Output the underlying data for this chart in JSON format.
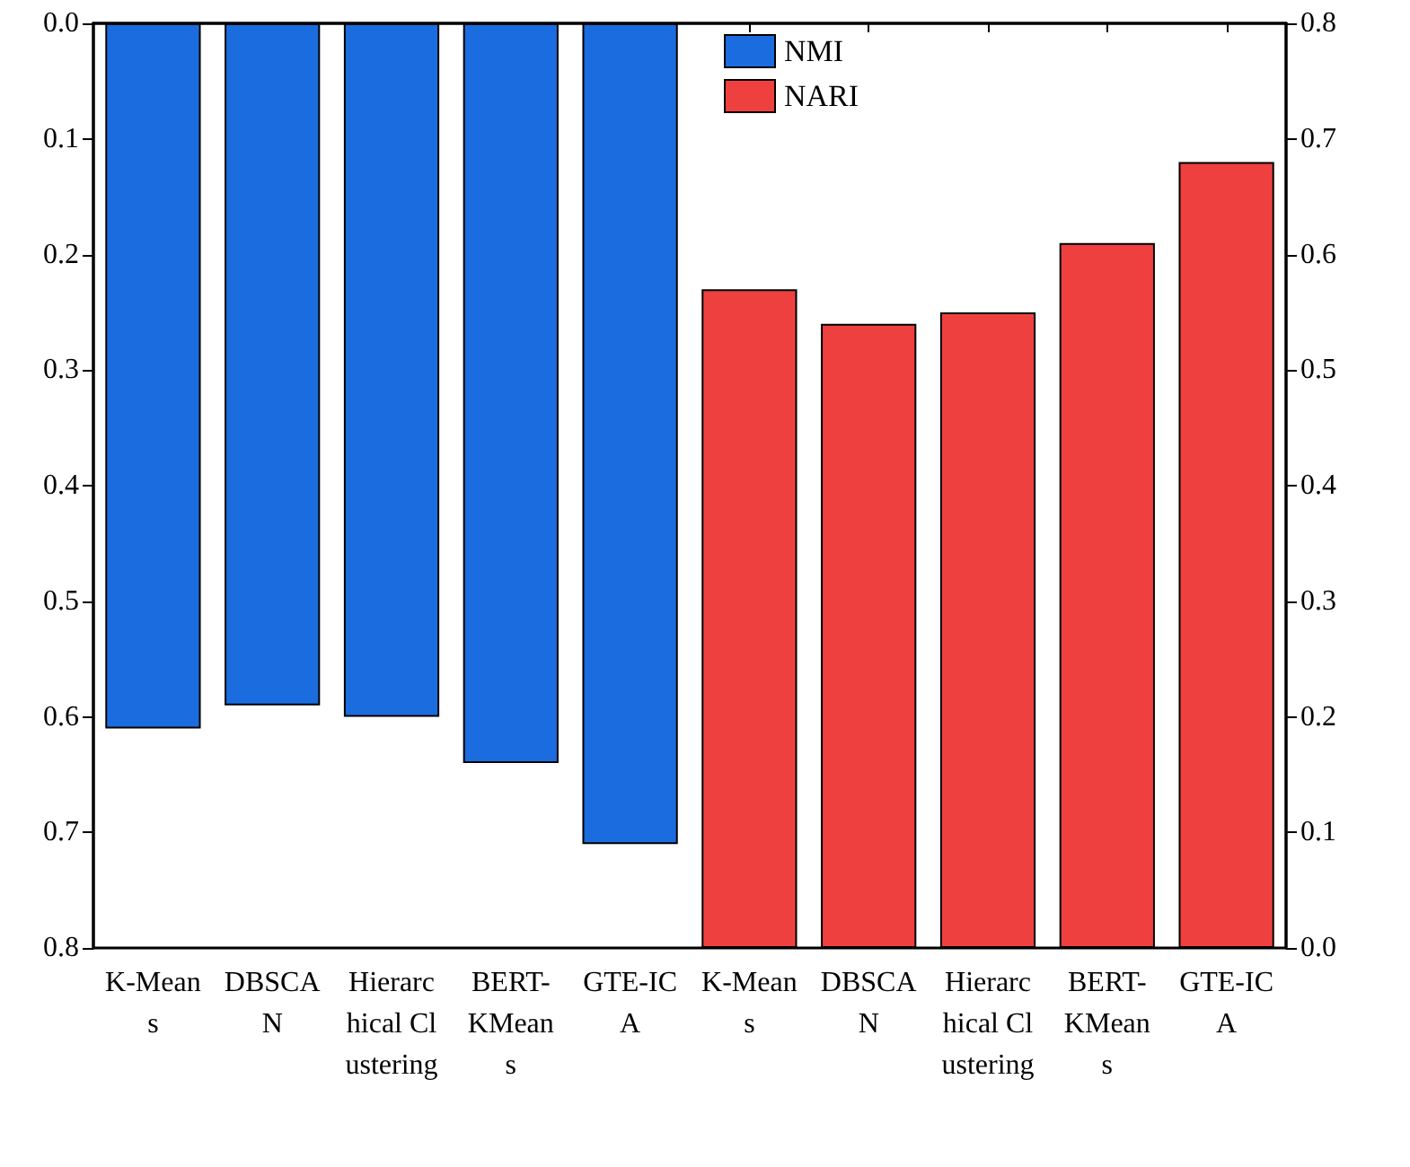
{
  "chart_data": {
    "type": "bar",
    "categories": [
      "K-Means",
      "DBSCAN",
      "Hierarchical Clustering",
      "BERT-KMeans",
      "GTE-ICA",
      "K-Means",
      "DBSCAN",
      "Hierarchical Clustering",
      "BERT-KMeans",
      "GTE-ICA"
    ],
    "series": [
      {
        "name": "NMI",
        "color": "#1b6ddf",
        "values": [
          0.61,
          0.59,
          0.6,
          0.64,
          0.71,
          null,
          null,
          null,
          null,
          null
        ]
      },
      {
        "name": "NARI",
        "color": "#ef4040",
        "axis": "y2",
        "values": [
          null,
          null,
          null,
          null,
          null,
          0.57,
          0.54,
          0.55,
          0.61,
          0.68
        ]
      }
    ],
    "ylim": [
      0.8,
      0
    ],
    "yticks": [
      {
        "value": 0,
        "label": "0.0"
      },
      0.1,
      0.2,
      0.3,
      0.4,
      0.5,
      0.6,
      0.7,
      0.8
    ],
    "y2lim": [
      0,
      0.8
    ],
    "y2ticks": [
      {
        "value": 0,
        "label": "0.0"
      },
      0.1,
      0.2,
      0.3,
      0.4,
      0.5,
      0.6,
      0.7,
      0.8
    ],
    "grid": false,
    "legend": "top"
  }
}
